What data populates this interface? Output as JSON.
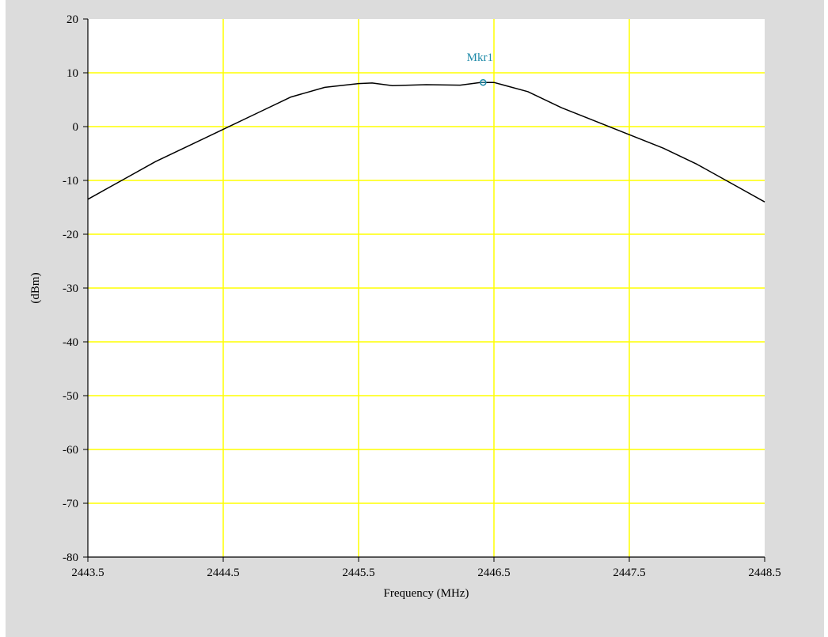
{
  "colors": {
    "panel_bg": "#dcdcdc",
    "plot_bg": "#ffffff",
    "grid": "#ffff00",
    "trace": "#000000",
    "marker": "#1e8aa8",
    "axis": "#000000"
  },
  "chart_data": {
    "type": "line",
    "title": "",
    "xlabel": "Frequency (MHz)",
    "ylabel": "(dBm)",
    "xlim": [
      2443.5,
      2448.5
    ],
    "ylim": [
      -80,
      20
    ],
    "xticks": [
      2443.5,
      2444.5,
      2445.5,
      2446.5,
      2447.5,
      2448.5
    ],
    "xtick_labels": [
      "2443.5",
      "2444.5",
      "2445.5",
      "2446.5",
      "2447.5",
      "2448.5"
    ],
    "yticks": [
      20,
      10,
      0,
      -10,
      -20,
      -30,
      -40,
      -50,
      -60,
      -70,
      -80
    ],
    "ytick_labels": [
      "20",
      "10",
      "0",
      "-10",
      "-20",
      "-30",
      "-40",
      "-50",
      "-60",
      "-70",
      "-80"
    ],
    "grid": true,
    "series": [
      {
        "x": [
          2443.5,
          2443.75,
          2444.0,
          2444.25,
          2444.5,
          2444.75,
          2445.0,
          2445.25,
          2445.5,
          2445.6,
          2445.75,
          2446.0,
          2446.25,
          2446.4,
          2446.5,
          2446.75,
          2447.0,
          2447.25,
          2447.5,
          2447.75,
          2448.0,
          2448.25,
          2448.5
        ],
        "y": [
          -13.5,
          -10.0,
          -6.5,
          -3.5,
          -0.5,
          2.5,
          5.5,
          7.3,
          8.0,
          8.1,
          7.6,
          7.8,
          7.7,
          8.2,
          8.2,
          6.5,
          3.5,
          1.0,
          -1.5,
          -4.0,
          -7.0,
          -10.5,
          -14.0
        ]
      }
    ],
    "marker": {
      "label": "Mkr1",
      "x": 2446.42,
      "y": 8.2
    }
  }
}
